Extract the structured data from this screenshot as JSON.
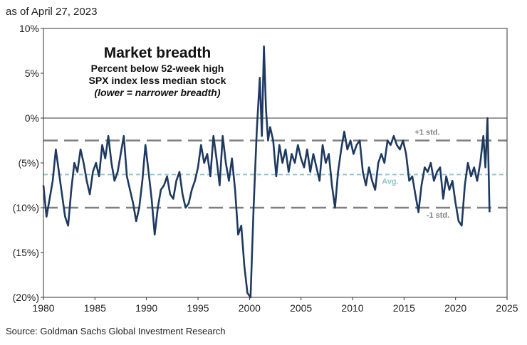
{
  "header": {
    "as_of": "as of April 27, 2023"
  },
  "footer": {
    "source": "Source: Goldman Sachs Global Investment Research"
  },
  "colors": {
    "series": "#1f3a5f",
    "ref_std": "#808080",
    "ref_avg": "#8ec6d0",
    "axis": "#333333"
  },
  "chart_data": {
    "type": "line",
    "title": "Market breadth",
    "subtitle_lines": [
      "Percent below 52-week high",
      "SPX index less median stock",
      "(lower = narrower breadth)"
    ],
    "xlabel": "",
    "ylabel": "",
    "xlim": [
      1980,
      2025
    ],
    "ylim": [
      -20,
      10
    ],
    "x_ticks": [
      1980,
      1985,
      1990,
      1995,
      2000,
      2005,
      2010,
      2015,
      2020,
      2025
    ],
    "x_tick_labels": [
      "1980",
      "1985",
      "1990",
      "1995",
      "2000",
      "2005",
      "2010",
      "2015",
      "2020",
      "2025"
    ],
    "y_ticks": [
      10,
      5,
      0,
      -5,
      -10,
      -15,
      -20
    ],
    "y_tick_labels": [
      "10%",
      "5%",
      "0%",
      "(5%)",
      "(10%)",
      "(15%)",
      "(20%)"
    ],
    "reference_lines": [
      {
        "label": "+1 std.",
        "value": -2.5,
        "style": "dashed"
      },
      {
        "label": "Avg.",
        "value": -6.3,
        "style": "dashed"
      },
      {
        "label": "-1 std.",
        "value": -10.0,
        "style": "dashed"
      }
    ],
    "series": [
      {
        "x": [
          1980.0,
          1980.3,
          1980.6,
          1980.9,
          1981.2,
          1981.5,
          1981.8,
          1982.1,
          1982.4,
          1982.7,
          1983.0,
          1983.3,
          1983.6,
          1983.9,
          1984.2,
          1984.5,
          1984.8,
          1985.1,
          1985.4,
          1985.7,
          1986.0,
          1986.3,
          1986.6,
          1986.9,
          1987.2,
          1987.5,
          1987.8,
          1988.1,
          1988.4,
          1988.7,
          1989.0,
          1989.3,
          1989.6,
          1989.9,
          1990.2,
          1990.5,
          1990.8,
          1991.1,
          1991.4,
          1991.7,
          1992.0,
          1992.3,
          1992.6,
          1992.9,
          1993.2,
          1993.5,
          1993.8,
          1994.1,
          1994.4,
          1994.7,
          1995.0,
          1995.3,
          1995.6,
          1995.9,
          1996.2,
          1996.5,
          1996.8,
          1997.1,
          1997.4,
          1997.7,
          1998.0,
          1998.3,
          1998.6,
          1998.9,
          1999.2,
          1999.5,
          1999.8,
          2000.1,
          2000.4,
          2000.7,
          2001.0,
          2001.2,
          2001.4,
          2001.6,
          2001.8,
          2002.0,
          2002.3,
          2002.6,
          2002.9,
          2003.2,
          2003.5,
          2003.8,
          2004.1,
          2004.4,
          2004.7,
          2005.0,
          2005.3,
          2005.6,
          2005.9,
          2006.2,
          2006.5,
          2006.8,
          2007.1,
          2007.4,
          2007.7,
          2008.0,
          2008.3,
          2008.6,
          2008.9,
          2009.2,
          2009.5,
          2009.8,
          2010.1,
          2010.4,
          2010.7,
          2011.0,
          2011.3,
          2011.6,
          2011.9,
          2012.2,
          2012.5,
          2012.8,
          2013.1,
          2013.4,
          2013.7,
          2014.0,
          2014.3,
          2014.6,
          2014.9,
          2015.2,
          2015.5,
          2015.8,
          2016.1,
          2016.4,
          2016.7,
          2017.0,
          2017.3,
          2017.6,
          2017.9,
          2018.2,
          2018.5,
          2018.8,
          2019.1,
          2019.4,
          2019.7,
          2020.0,
          2020.3,
          2020.6,
          2020.9,
          2021.2,
          2021.5,
          2021.8,
          2022.1,
          2022.4,
          2022.7,
          2022.9,
          2023.1,
          2023.3
        ],
        "values": [
          -7.5,
          -11.0,
          -9.0,
          -7.0,
          -3.5,
          -6.0,
          -8.5,
          -11.0,
          -12.0,
          -8.0,
          -5.0,
          -6.0,
          -3.5,
          -5.0,
          -7.0,
          -8.5,
          -6.0,
          -5.0,
          -6.5,
          -3.0,
          -4.5,
          -2.0,
          -5.0,
          -7.0,
          -6.0,
          -4.0,
          -2.0,
          -6.5,
          -8.0,
          -9.5,
          -11.5,
          -10.0,
          -7.0,
          -3.0,
          -6.0,
          -9.0,
          -13.0,
          -10.0,
          -8.0,
          -7.5,
          -6.5,
          -8.5,
          -9.0,
          -7.0,
          -6.0,
          -8.5,
          -10.0,
          -9.5,
          -8.0,
          -7.0,
          -5.5,
          -3.0,
          -5.0,
          -4.0,
          -6.5,
          -2.0,
          -4.5,
          -7.5,
          -2.0,
          -5.0,
          -7.0,
          -4.5,
          -8.0,
          -13.0,
          -12.0,
          -16.5,
          -19.5,
          -20.0,
          -10.0,
          -1.5,
          4.5,
          -2.0,
          8.0,
          1.0,
          -2.5,
          -1.0,
          -2.5,
          -6.5,
          -3.0,
          -5.0,
          -3.5,
          -6.0,
          -4.0,
          -5.0,
          -3.0,
          -4.5,
          -5.5,
          -3.5,
          -6.0,
          -4.0,
          -5.5,
          -7.0,
          -3.0,
          -5.0,
          -4.0,
          -7.5,
          -10.0,
          -6.0,
          -3.5,
          -1.5,
          -3.5,
          -2.5,
          -4.0,
          -3.0,
          -2.5,
          -6.0,
          -7.5,
          -5.5,
          -7.0,
          -8.0,
          -5.0,
          -4.0,
          -5.0,
          -2.5,
          -3.0,
          -2.0,
          -3.0,
          -3.5,
          -2.5,
          -4.0,
          -7.0,
          -6.5,
          -8.5,
          -10.5,
          -7.5,
          -5.5,
          -6.0,
          -5.0,
          -7.0,
          -6.0,
          -5.5,
          -9.0,
          -6.5,
          -8.0,
          -7.0,
          -9.5,
          -11.5,
          -12.0,
          -7.5,
          -5.0,
          -6.5,
          -5.5,
          -7.0,
          -5.0,
          -2.0,
          -5.5,
          0.0,
          -10.5
        ]
      }
    ],
    "grid": false,
    "legend": "none"
  }
}
